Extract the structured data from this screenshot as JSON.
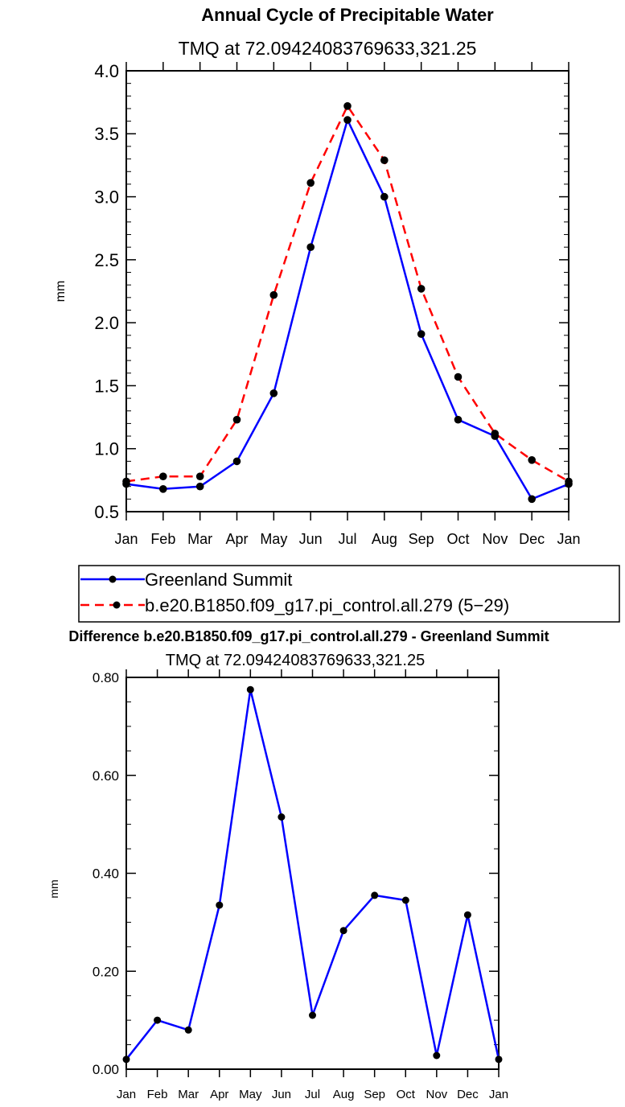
{
  "chart_data": [
    {
      "type": "line",
      "title": "Annual Cycle of Precipitable Water",
      "subtitle": "TMQ  at  72.09424083769633,321.25",
      "ylabel": "mm",
      "categories": [
        "Jan",
        "Feb",
        "Mar",
        "Apr",
        "May",
        "Jun",
        "Jul",
        "Aug",
        "Sep",
        "Oct",
        "Nov",
        "Dec",
        "Jan"
      ],
      "ylim": [
        0.5,
        4.0
      ],
      "yticks": [
        "0.5",
        "1.0",
        "1.5",
        "2.0",
        "2.5",
        "3.0",
        "3.5",
        "4.0"
      ],
      "legend_position": "bottom",
      "series": [
        {
          "name": "Greenland Summit",
          "color": "#0000ff",
          "dash": "solid",
          "values": [
            0.72,
            0.68,
            0.7,
            0.9,
            1.44,
            2.6,
            3.61,
            3.0,
            1.91,
            1.23,
            1.1,
            0.6,
            0.72
          ]
        },
        {
          "name": "b.e20.B1850.f09_g17.pi_control.all.279 (5−29)",
          "color": "#ff0000",
          "dash": "dashed",
          "values": [
            0.74,
            0.78,
            0.78,
            1.23,
            2.22,
            3.11,
            3.72,
            3.29,
            2.27,
            1.57,
            1.12,
            0.91,
            0.74
          ]
        }
      ]
    },
    {
      "type": "line",
      "title": "Difference b.e20.B1850.f09_g17.pi_control.all.279 - Greenland Summit",
      "subtitle": "TMQ  at  72.09424083769633,321.25",
      "ylabel": "mm",
      "categories": [
        "Jan",
        "Feb",
        "Mar",
        "Apr",
        "May",
        "Jun",
        "Jul",
        "Aug",
        "Sep",
        "Oct",
        "Nov",
        "Dec",
        "Jan"
      ],
      "ylim": [
        0.0,
        0.8
      ],
      "yticks": [
        "0.00",
        "0.20",
        "0.40",
        "0.60",
        "0.80"
      ],
      "series": [
        {
          "color": "#0000ff",
          "dash": "solid",
          "values": [
            0.02,
            0.1,
            0.08,
            0.335,
            0.775,
            0.515,
            0.11,
            0.283,
            0.355,
            0.345,
            0.028,
            0.315,
            0.02
          ]
        }
      ]
    }
  ]
}
